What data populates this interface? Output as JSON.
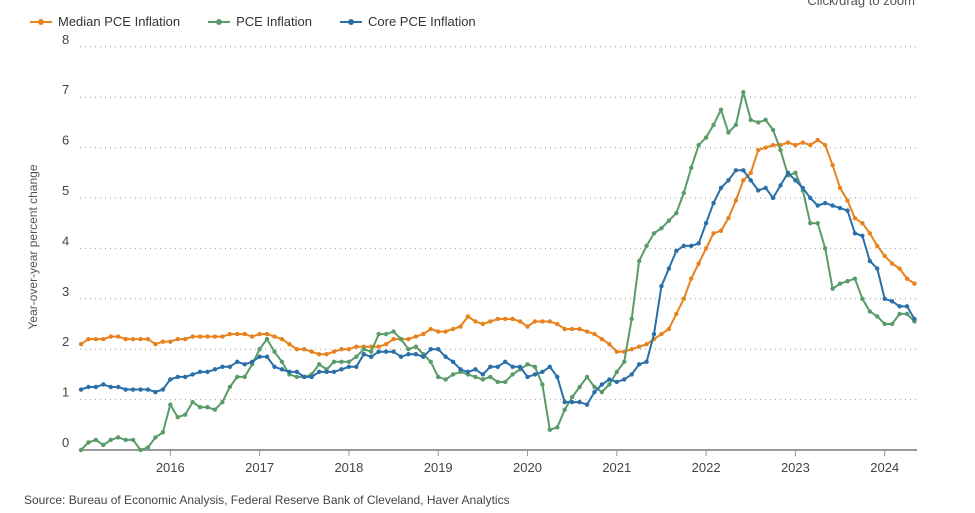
{
  "hint": "Click/drag to zoom",
  "source": "Source: Bureau of Economic Analysis, Federal Reserve Bank of Cleveland, Haver Analytics",
  "chart_data": {
    "type": "line",
    "title": "",
    "xlabel": "",
    "ylabel": "Year-over-year percent change",
    "x_start": "2015-01",
    "x_end": "2024-05",
    "frequency": "monthly",
    "xticks": [
      "2016",
      "2017",
      "2018",
      "2019",
      "2020",
      "2021",
      "2022",
      "2023",
      "2024"
    ],
    "yticks": [
      "0",
      "1",
      "2",
      "3",
      "4",
      "5",
      "6",
      "7",
      "8"
    ],
    "ylim": [
      0,
      8
    ],
    "grid": "horizontal dotted",
    "legend": "top-left",
    "series": [
      {
        "name": "Median PCE Inflation",
        "color": "#e8821e",
        "values": [
          2.1,
          2.2,
          2.2,
          2.2,
          2.25,
          2.25,
          2.2,
          2.2,
          2.2,
          2.2,
          2.1,
          2.15,
          2.15,
          2.2,
          2.2,
          2.25,
          2.25,
          2.25,
          2.25,
          2.25,
          2.3,
          2.3,
          2.3,
          2.25,
          2.3,
          2.3,
          2.25,
          2.2,
          2.1,
          2.0,
          2.0,
          1.95,
          1.9,
          1.9,
          1.95,
          2.0,
          2.0,
          2.05,
          2.05,
          2.05,
          2.05,
          2.1,
          2.2,
          2.2,
          2.2,
          2.25,
          2.3,
          2.4,
          2.35,
          2.35,
          2.4,
          2.45,
          2.65,
          2.55,
          2.5,
          2.55,
          2.6,
          2.6,
          2.6,
          2.55,
          2.45,
          2.55,
          2.55,
          2.55,
          2.5,
          2.4,
          2.4,
          2.4,
          2.35,
          2.3,
          2.2,
          2.1,
          1.95,
          1.95,
          2.0,
          2.05,
          2.1,
          2.2,
          2.3,
          2.4,
          2.7,
          3.0,
          3.4,
          3.7,
          4.0,
          4.3,
          4.35,
          4.6,
          4.95,
          5.35,
          5.5,
          5.95,
          6.0,
          6.05,
          6.05,
          6.1,
          6.05,
          6.1,
          6.05,
          6.15,
          6.05,
          5.65,
          5.2,
          4.95,
          4.6,
          4.5,
          4.3,
          4.05,
          3.85,
          3.7,
          3.6,
          3.4,
          3.3
        ]
      },
      {
        "name": "PCE Inflation",
        "color": "#5a9b6a",
        "values": [
          0.0,
          0.15,
          0.2,
          0.1,
          0.2,
          0.25,
          0.2,
          0.2,
          0.0,
          0.05,
          0.25,
          0.35,
          0.9,
          0.65,
          0.7,
          0.95,
          0.85,
          0.85,
          0.8,
          0.95,
          1.25,
          1.45,
          1.45,
          1.7,
          2.0,
          2.2,
          1.95,
          1.75,
          1.5,
          1.45,
          1.45,
          1.5,
          1.7,
          1.6,
          1.75,
          1.75,
          1.75,
          1.85,
          2.0,
          1.95,
          2.3,
          2.3,
          2.35,
          2.2,
          2.0,
          2.05,
          1.9,
          1.75,
          1.45,
          1.4,
          1.5,
          1.55,
          1.5,
          1.45,
          1.4,
          1.45,
          1.35,
          1.35,
          1.5,
          1.6,
          1.7,
          1.65,
          1.3,
          0.4,
          0.45,
          0.8,
          1.05,
          1.25,
          1.45,
          1.25,
          1.15,
          1.3,
          1.55,
          1.75,
          2.6,
          3.75,
          4.05,
          4.3,
          4.4,
          4.55,
          4.7,
          5.1,
          5.6,
          6.05,
          6.2,
          6.45,
          6.75,
          6.3,
          6.45,
          7.1,
          6.55,
          6.5,
          6.55,
          6.35,
          5.95,
          5.45,
          5.5,
          5.15,
          4.5,
          4.5,
          4.0,
          3.2,
          3.3,
          3.35,
          3.4,
          3.0,
          2.75,
          2.65,
          2.5,
          2.5,
          2.7,
          2.7,
          2.55
        ]
      },
      {
        "name": "Core PCE Inflation",
        "color": "#2a6fa8",
        "values": [
          1.2,
          1.25,
          1.25,
          1.3,
          1.25,
          1.25,
          1.2,
          1.2,
          1.2,
          1.2,
          1.15,
          1.2,
          1.4,
          1.45,
          1.45,
          1.5,
          1.55,
          1.55,
          1.6,
          1.65,
          1.65,
          1.75,
          1.7,
          1.75,
          1.85,
          1.85,
          1.65,
          1.6,
          1.55,
          1.55,
          1.45,
          1.45,
          1.55,
          1.55,
          1.55,
          1.6,
          1.65,
          1.65,
          1.9,
          1.85,
          1.95,
          1.95,
          1.95,
          1.85,
          1.9,
          1.9,
          1.85,
          2.0,
          2.0,
          1.85,
          1.75,
          1.6,
          1.55,
          1.6,
          1.5,
          1.65,
          1.65,
          1.75,
          1.65,
          1.65,
          1.45,
          1.5,
          1.55,
          1.65,
          1.45,
          0.95,
          0.95,
          0.95,
          0.9,
          1.15,
          1.3,
          1.4,
          1.35,
          1.4,
          1.5,
          1.7,
          1.75,
          2.3,
          3.25,
          3.6,
          3.95,
          4.05,
          4.05,
          4.1,
          4.5,
          4.9,
          5.2,
          5.35,
          5.55,
          5.55,
          5.35,
          5.15,
          5.2,
          5.0,
          5.25,
          5.5,
          5.35,
          5.2,
          5.0,
          4.85,
          4.9,
          4.85,
          4.8,
          4.75,
          4.3,
          4.25,
          3.75,
          3.6,
          3.0,
          2.95,
          2.85,
          2.85,
          2.6
        ]
      }
    ]
  }
}
